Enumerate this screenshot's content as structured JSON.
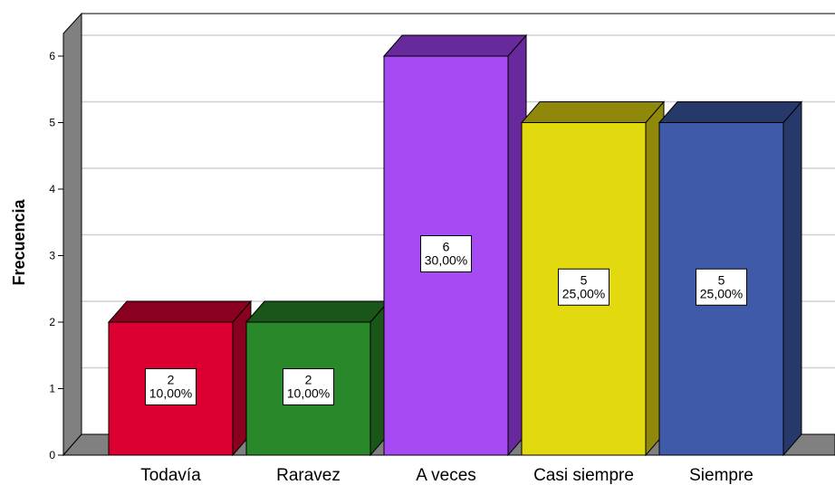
{
  "chart_data": {
    "type": "bar",
    "style": "3d",
    "categories": [
      "Todavía",
      "Raravez",
      "A veces",
      "Casi siempre",
      "Siempre"
    ],
    "values": [
      2,
      2,
      6,
      5,
      5
    ],
    "percent_labels": [
      "10,00%",
      "10,00%",
      "30,00%",
      "25,00%",
      "25,00%"
    ],
    "colors": [
      "#dc0032",
      "#29892a",
      "#a64af4",
      "#e3d90f",
      "#3e5aa8"
    ],
    "side_colors": [
      "#8a001f",
      "#1a561a",
      "#68299d",
      "#8f880a",
      "#27386a"
    ],
    "ylabel": "Frecuencia",
    "xlabel": "",
    "ylim": [
      0,
      6
    ],
    "yticks": [
      0,
      1,
      2,
      3,
      4,
      5,
      6
    ],
    "grid": true
  }
}
